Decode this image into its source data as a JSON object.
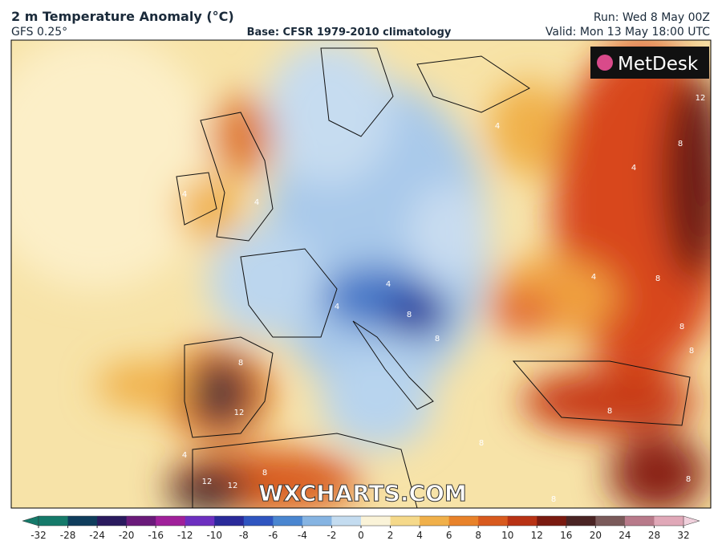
{
  "header": {
    "title": "2 m Temperature Anomaly (°C)",
    "model": "GFS 0.25°",
    "base": "Base: CFSR 1979-2010 climatology",
    "run": "Run: Wed 8 May 00Z",
    "valid": "Valid: Mon 13 May 18:00 UTC"
  },
  "map": {
    "logo": "MetDesk",
    "watermark": "WXCHARTS.COM",
    "contour_labels": [
      "12",
      "8",
      "4",
      "4",
      "4",
      "4",
      "4",
      "8",
      "8",
      "8",
      "12",
      "8",
      "8",
      "12",
      "12",
      "8",
      "8",
      "4",
      "8",
      "8",
      "4",
      "8",
      "4",
      "8"
    ]
  },
  "legend": {
    "ticks": [
      -32,
      -28,
      -24,
      -20,
      -16,
      -12,
      -10,
      -8,
      -6,
      -4,
      -2,
      0,
      2,
      4,
      6,
      8,
      10,
      12,
      16,
      20,
      24,
      28,
      32
    ],
    "colors": [
      "#157a6a",
      "#0f3d5c",
      "#2a1a5e",
      "#6a1a7a",
      "#a0209a",
      "#6d2fc0",
      "#2a2a9a",
      "#2f55c0",
      "#4a86d0",
      "#86b4e2",
      "#c4dcf0",
      "#faf3d8",
      "#f5d98a",
      "#f0b04a",
      "#e8822a",
      "#d85a1e",
      "#b83214",
      "#7a1a10",
      "#4a2424",
      "#7a5a5a",
      "#b87a8a",
      "#e0a8b8",
      "#f0d0dc"
    ]
  }
}
